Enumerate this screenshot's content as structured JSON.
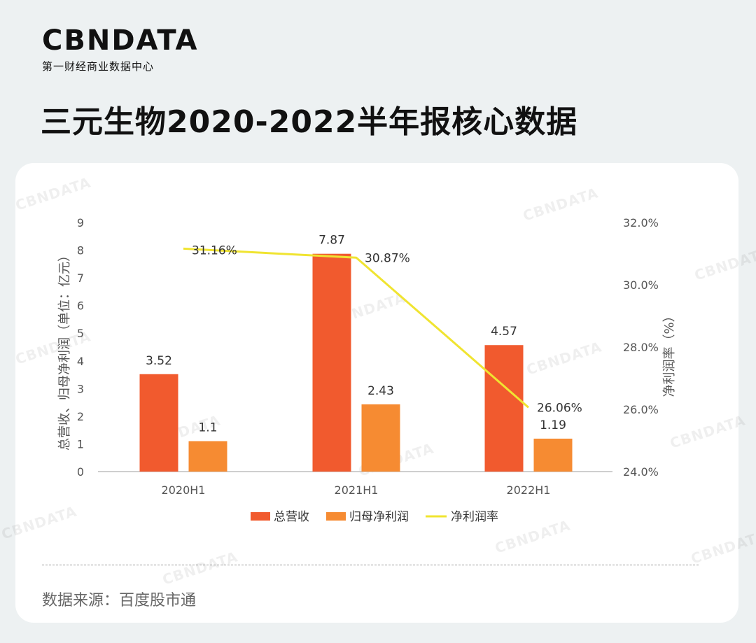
{
  "brand": {
    "logo": "CBNDATA",
    "tagline": "第一财经商业数据中心"
  },
  "title": "三元生物2020-2022半年报核心数据",
  "source": "数据来源：百度股市通",
  "watermark_text": "CBNDATA",
  "colors": {
    "revenue": "#f15a2e",
    "net_profit": "#f68b32",
    "margin": "#f0e431",
    "axis": "#555555"
  },
  "chart_data": {
    "type": "bar",
    "categories": [
      "2020H1",
      "2021H1",
      "2022H1"
    ],
    "series": [
      {
        "name": "总营收",
        "kind": "bar",
        "axis": "left",
        "values": [
          3.52,
          7.87,
          4.57
        ],
        "labels": [
          "3.52",
          "7.87",
          "4.57"
        ]
      },
      {
        "name": "归母净利润",
        "kind": "bar",
        "axis": "left",
        "values": [
          1.1,
          2.43,
          1.19
        ],
        "labels": [
          "1.1",
          "2.43",
          "1.19"
        ]
      },
      {
        "name": "净利润率",
        "kind": "line",
        "axis": "right",
        "values": [
          31.16,
          30.87,
          26.06
        ],
        "labels": [
          "31.16%",
          "30.87%",
          "26.06%"
        ]
      }
    ],
    "ylabel": "总营收、归母净利润（单位：亿元）",
    "y2label": "净利润率（%）",
    "ylim": [
      0,
      9
    ],
    "yticks": [
      "0",
      "1",
      "2",
      "3",
      "4",
      "5",
      "6",
      "7",
      "8",
      "9"
    ],
    "y2lim": [
      24,
      32
    ],
    "y2ticks": [
      "24.0%",
      "26.0%",
      "28.0%",
      "30.0%",
      "32.0%"
    ],
    "grid": false,
    "legend_position": "bottom"
  }
}
